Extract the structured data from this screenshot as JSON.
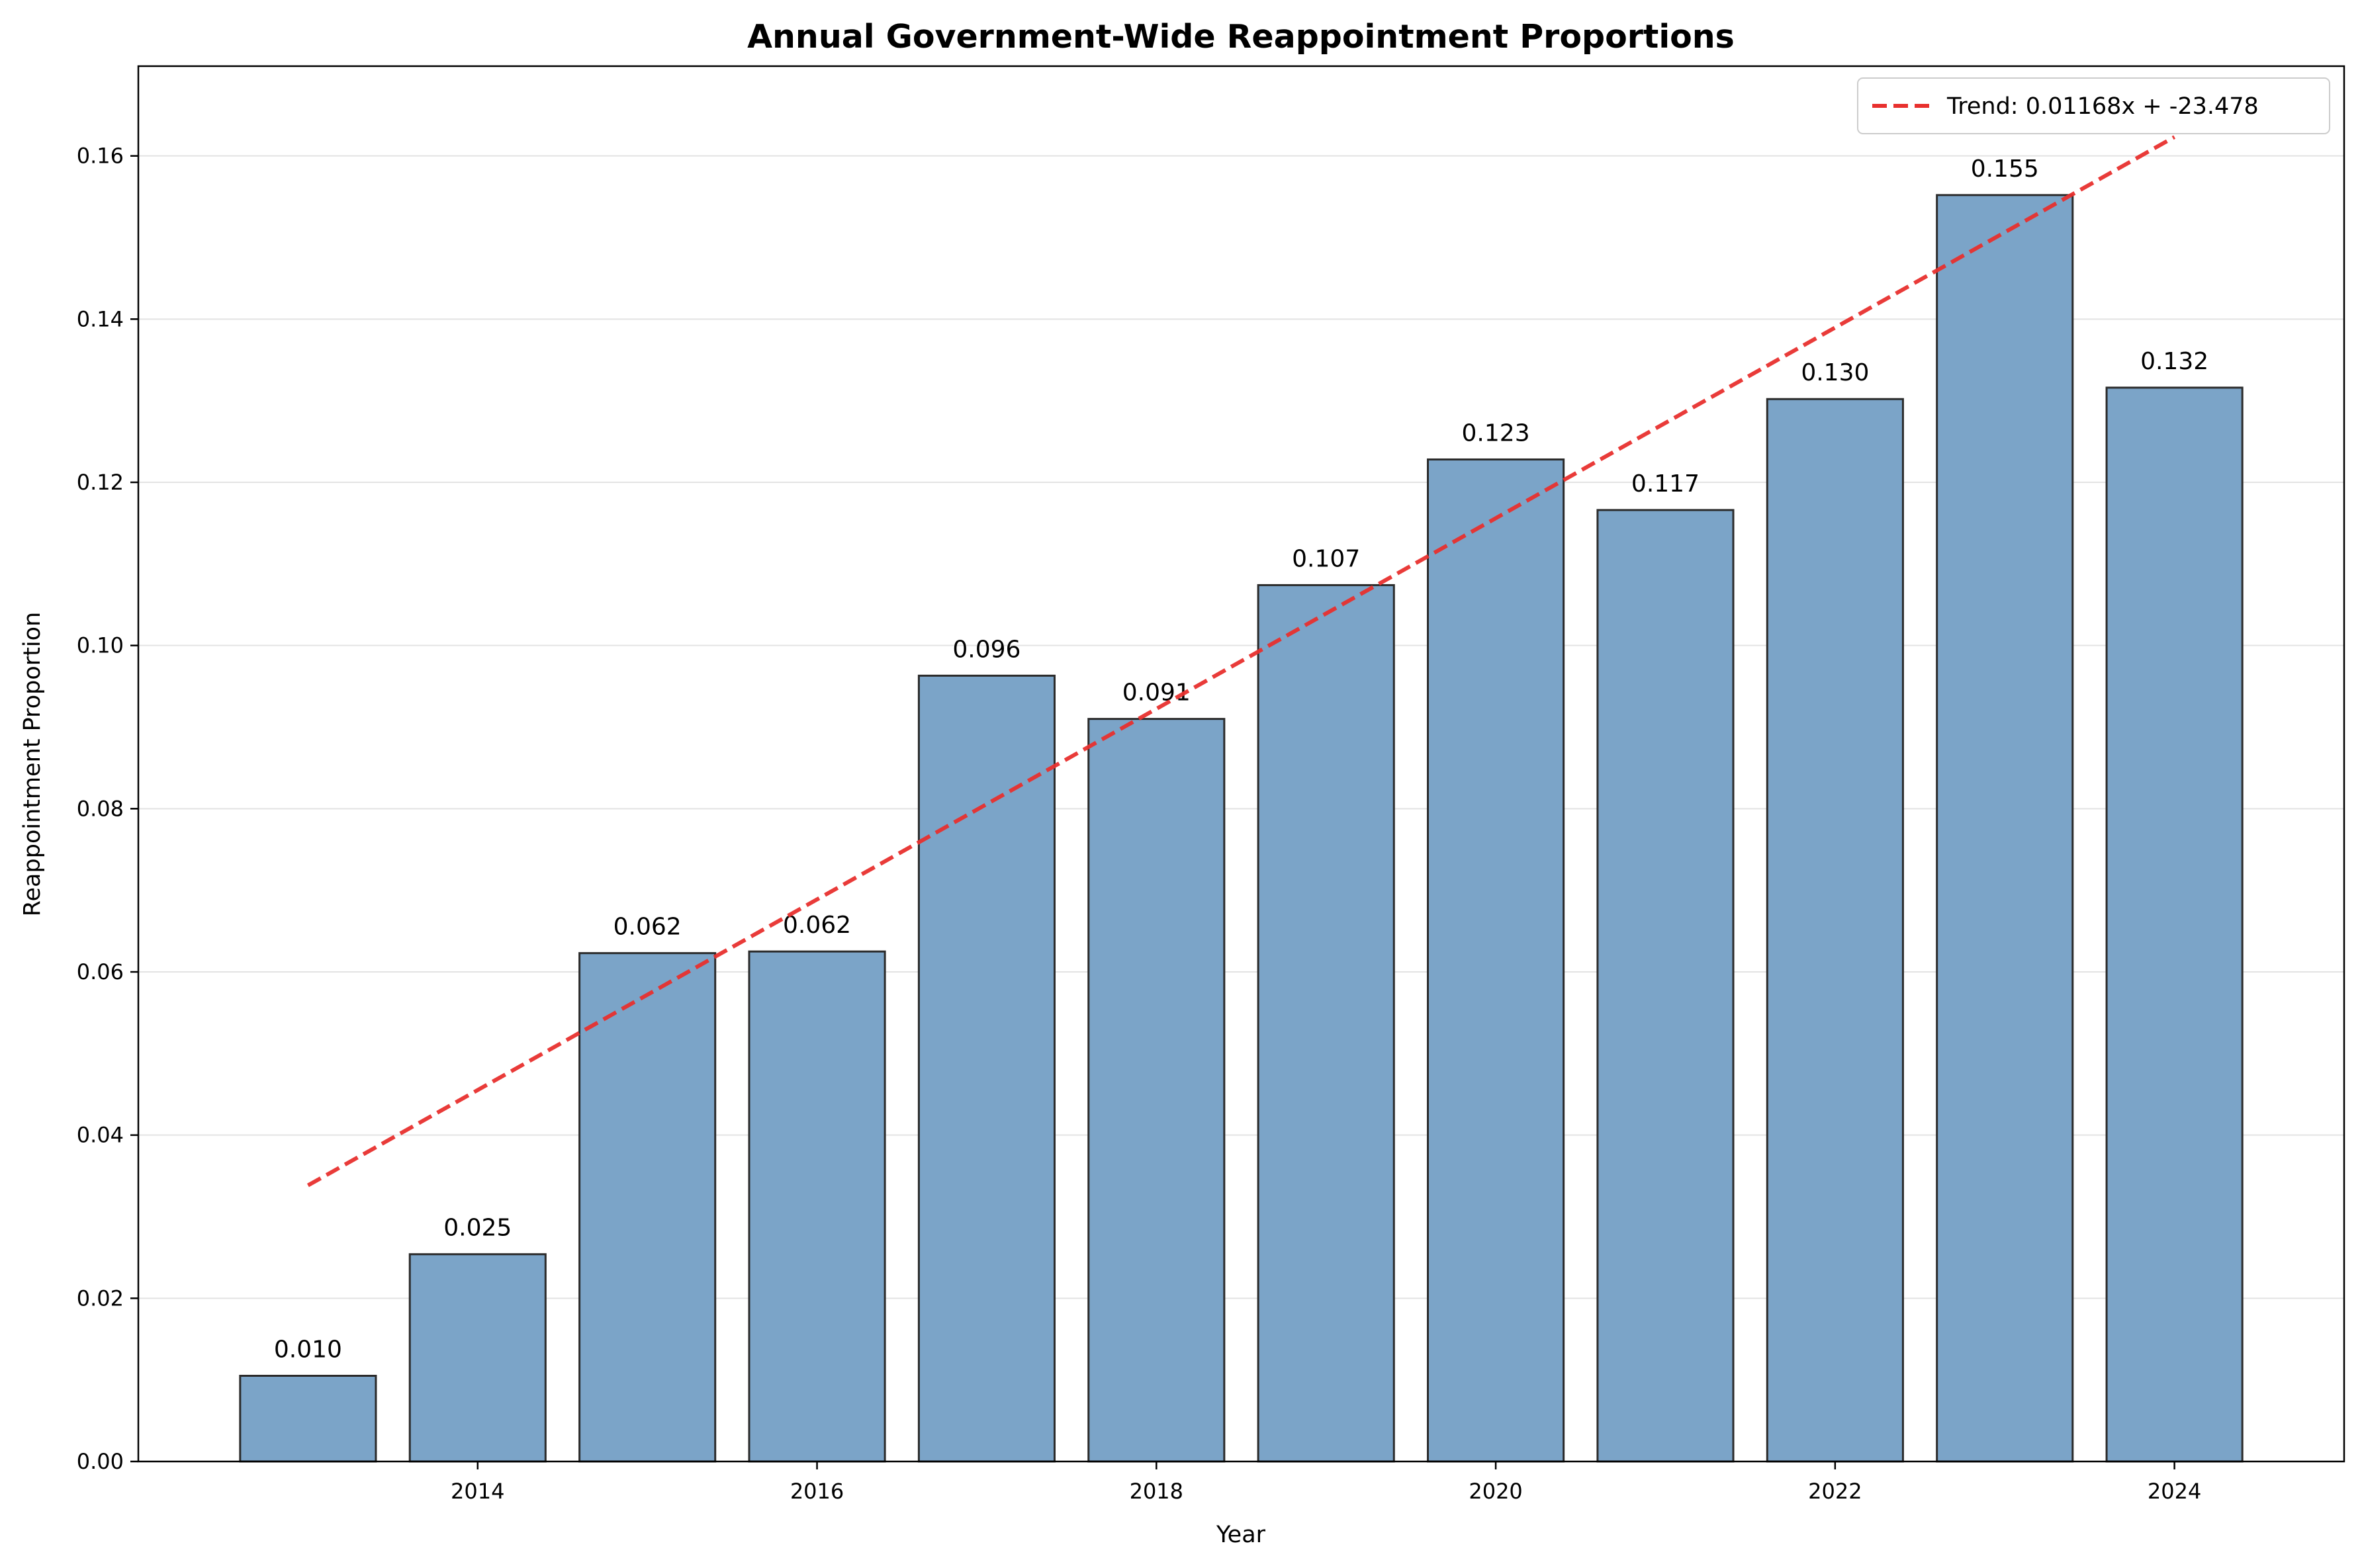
{
  "chart_data": {
    "type": "bar",
    "title": "Annual Government-Wide Reappointment Proportions",
    "xlabel": "Year",
    "ylabel": "Reappointment Proportion",
    "categories": [
      2013,
      2014,
      2015,
      2016,
      2017,
      2018,
      2019,
      2020,
      2021,
      2022,
      2023,
      2024
    ],
    "values": [
      0.0105,
      0.0254,
      0.0623,
      0.0625,
      0.0963,
      0.091,
      0.1074,
      0.1228,
      0.1166,
      0.1302,
      0.1552,
      0.1316
    ],
    "data_labels": [
      "0.010",
      "0.025",
      "0.062",
      "0.062",
      "0.096",
      "0.091",
      "0.107",
      "0.123",
      "0.117",
      "0.130",
      "0.155",
      "0.132"
    ],
    "x_ticks": [
      "2014",
      "2016",
      "2018",
      "2020",
      "2022",
      "2024"
    ],
    "y_ticks": [
      "0.00",
      "0.02",
      "0.04",
      "0.06",
      "0.08",
      "0.10",
      "0.12",
      "0.14",
      "0.16"
    ],
    "xlim": [
      2012.0,
      2025.0
    ],
    "ylim": [
      0,
      0.171
    ],
    "grid": "horizontal",
    "legend_position": "top-right",
    "bar_color": "#7BA4C8",
    "bar_edge_color": "#2b2b2b",
    "trend": {
      "label": "Trend: 0.01168x + -23.478",
      "slope": 0.01168,
      "intercept": -23.478,
      "x_range": [
        2013,
        2024
      ],
      "color": "#E8302E",
      "style": "dashed"
    }
  }
}
